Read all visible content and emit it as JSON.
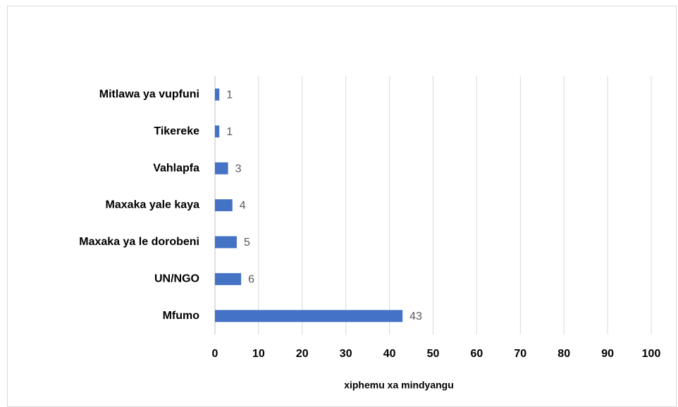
{
  "chart_data": {
    "type": "hbar",
    "categories": [
      "Mitlawa ya vupfuni",
      "Tikereke",
      "Vahlapfa",
      "Maxaka yale kaya",
      "Maxaka ya le dorobeni",
      "UN/NGO",
      "Mfumo"
    ],
    "values": [
      1,
      1,
      3,
      4,
      5,
      6,
      43
    ],
    "color": "#4472c4",
    "x_label": "xiphemu xa mindyangu",
    "xlim": [
      0,
      100
    ],
    "xticks": [
      0,
      10,
      20,
      30,
      40,
      50,
      60,
      70,
      80,
      90,
      100
    ],
    "grid": true
  }
}
